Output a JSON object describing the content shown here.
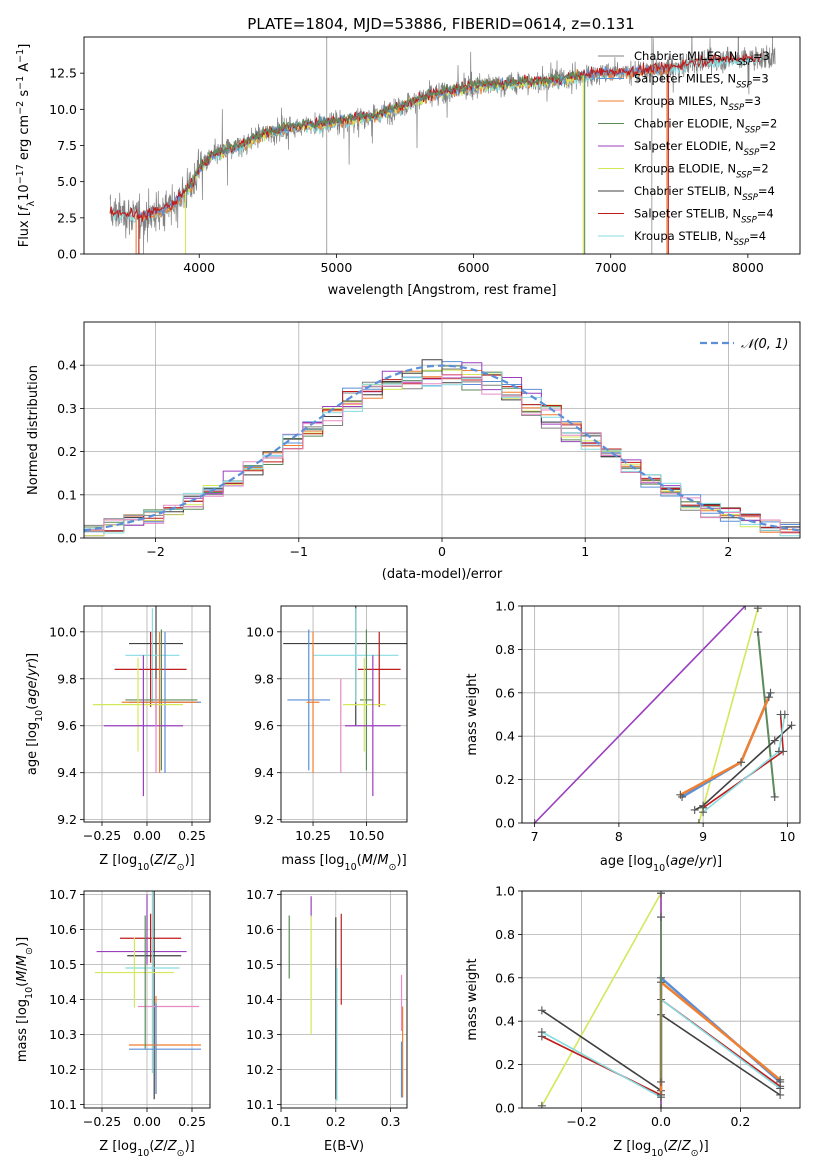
{
  "figure": {
    "title": "PLATE=1804, MJD=53886, FIBERID=0614, z=0.131",
    "colors": {
      "orange": "#f07f2f",
      "blue": "#5b8fd8",
      "purple": "#9a3fbf",
      "yellow": "#d4e85a",
      "green": "#5c8a5c",
      "pink": "#e98ac6",
      "red": "#c01c1c",
      "cyan": "#86dce0",
      "dark": "#404040",
      "gray": "#808080",
      "grid": "#b0b0b0"
    }
  },
  "chart_data": [
    {
      "id": "spectrum",
      "type": "line",
      "title": "PLATE=1804, MJD=53886, FIBERID=0614, z=0.131",
      "xlabel": "wavelength [Angstrom, rest frame]",
      "ylabel": "Flux [f_λ 10^-17 erg cm^-2 s^-1 A^-1]",
      "xlim": [
        3160,
        8380
      ],
      "ylim": [
        0,
        15
      ],
      "xticks": [
        4000,
        5000,
        6000,
        7000,
        8000
      ],
      "yticks": [
        0.0,
        2.5,
        5.0,
        7.5,
        10.0,
        12.5
      ],
      "grid": false,
      "legend_position": "upper-right",
      "legend": [
        {
          "name": "Chabrier MILES, N_SSP=3",
          "color": "gray"
        },
        {
          "name": "Salpeter MILES, N_SSP=3",
          "color": "blue"
        },
        {
          "name": "Kroupa MILES, N_SSP=3",
          "color": "orange"
        },
        {
          "name": "Chabrier ELODIE, N_SSP=2",
          "color": "green"
        },
        {
          "name": "Salpeter ELODIE, N_SSP=2",
          "color": "purple"
        },
        {
          "name": "Kroupa ELODIE, N_SSP=2",
          "color": "yellow"
        },
        {
          "name": "Chabrier STELIB, N_SSP=4",
          "color": "dark"
        },
        {
          "name": "Salpeter STELIB, N_SSP=4",
          "color": "red"
        },
        {
          "name": "Kroupa STELIB, N_SSP=4",
          "color": "cyan"
        }
      ],
      "continuum_points": [
        [
          3350,
          2.9
        ],
        [
          3600,
          2.6
        ],
        [
          3800,
          3.3
        ],
        [
          3950,
          4.8
        ],
        [
          4000,
          6.0
        ],
        [
          4100,
          6.8
        ],
        [
          4300,
          7.5
        ],
        [
          4500,
          8.4
        ],
        [
          4700,
          8.8
        ],
        [
          4900,
          9.0
        ],
        [
          5100,
          9.3
        ],
        [
          5300,
          9.6
        ],
        [
          5500,
          10.3
        ],
        [
          5700,
          11.0
        ],
        [
          6000,
          11.6
        ],
        [
          6300,
          11.8
        ],
        [
          6600,
          12.0
        ],
        [
          6900,
          12.5
        ],
        [
          7200,
          12.6
        ],
        [
          7400,
          12.8
        ],
        [
          7600,
          13.2
        ],
        [
          7800,
          13.4
        ],
        [
          8000,
          13.5
        ],
        [
          8200,
          13.6
        ]
      ],
      "model_coverage": {
        "MILES": [
          3540,
          7410
        ],
        "ELODIE": [
          3900,
          6800
        ],
        "STELIB": [
          3350,
          8100
        ]
      },
      "data_coverage": [
        3350,
        8200
      ]
    },
    {
      "id": "residuals",
      "type": "line",
      "xlabel": "(data-model)/error",
      "ylabel": "Normed distribution",
      "xlim": [
        -2.5,
        2.5
      ],
      "ylim": [
        0,
        0.5
      ],
      "xticks": [
        -2,
        -1,
        0,
        1,
        2
      ],
      "yticks": [
        0.0,
        0.1,
        0.2,
        0.3,
        0.4
      ],
      "grid": true,
      "legend_position": "upper-right",
      "gaussian": {
        "name": "𝒩(0, 1)",
        "mean": 0,
        "sigma": 1,
        "color": "blue"
      },
      "bins": 36
    },
    {
      "id": "age_vs_Z",
      "type": "scatter",
      "xlabel": "Z [log10(Z/Z⊙)]",
      "ylabel": "age  [log10(age/yr)]",
      "xlim": [
        -0.35,
        0.35
      ],
      "ylim": [
        9.19,
        10.11
      ],
      "xticks": [
        -0.25,
        0.0,
        0.25
      ],
      "yticks": [
        9.2,
        9.4,
        9.6,
        9.8,
        10.0
      ],
      "grid": true,
      "points": [
        {
          "x": 0.05,
          "y": 9.95,
          "xerr": 0.15,
          "yerr": 0.35,
          "color": "dark"
        },
        {
          "x": 0.03,
          "y": 9.9,
          "xerr": 0.15,
          "yerr": 0.2,
          "color": "cyan"
        },
        {
          "x": 0.02,
          "y": 9.84,
          "xerr": 0.2,
          "yerr": 0.16,
          "color": "red"
        },
        {
          "x": 0.08,
          "y": 9.71,
          "xerr": 0.2,
          "yerr": 0.3,
          "color": "green"
        },
        {
          "x": 0.1,
          "y": 9.7,
          "xerr": 0.2,
          "yerr": 0.3,
          "color": "blue"
        },
        {
          "x": 0.07,
          "y": 9.7,
          "xerr": 0.21,
          "yerr": 0.3,
          "color": "orange"
        },
        {
          "x": -0.05,
          "y": 9.69,
          "xerr": 0.25,
          "yerr": 0.2,
          "color": "yellow"
        },
        {
          "x": -0.02,
          "y": 9.6,
          "xerr": 0.22,
          "yerr": 0.3,
          "color": "purple"
        },
        {
          "x": 0.05,
          "y": 9.6,
          "xerr": 0.0,
          "yerr": 0.2,
          "color": "pink"
        }
      ]
    },
    {
      "id": "age_vs_mass",
      "type": "scatter",
      "xlabel": "mass [log10(M/M⊙)]",
      "ylabel": "",
      "xlim": [
        10.1,
        10.69
      ],
      "ylim": [
        9.19,
        10.11
      ],
      "xticks": [
        10.25,
        10.5
      ],
      "yticks": [
        9.2,
        9.4,
        9.6,
        9.8,
        10.0
      ],
      "grid": true,
      "points": [
        {
          "x": 10.45,
          "y": 9.95,
          "xerr": 0.34,
          "yerr": 0.35,
          "color": "dark"
        },
        {
          "x": 10.45,
          "y": 9.9,
          "xerr": 0.2,
          "yerr": 0.2,
          "color": "cyan"
        },
        {
          "x": 10.56,
          "y": 9.84,
          "xerr": 0.1,
          "yerr": 0.16,
          "color": "red"
        },
        {
          "x": 10.5,
          "y": 9.71,
          "xerr": 0.03,
          "yerr": 0.3,
          "color": "green"
        },
        {
          "x": 10.23,
          "y": 9.71,
          "xerr": 0.1,
          "yerr": 0.3,
          "color": "blue"
        },
        {
          "x": 10.25,
          "y": 9.7,
          "xerr": 0.03,
          "yerr": 0.3,
          "color": "orange"
        },
        {
          "x": 10.49,
          "y": 9.69,
          "xerr": 0.1,
          "yerr": 0.2,
          "color": "yellow"
        },
        {
          "x": 10.53,
          "y": 9.6,
          "xerr": 0.13,
          "yerr": 0.3,
          "color": "purple"
        },
        {
          "x": 10.38,
          "y": 9.6,
          "xerr": 0.0,
          "yerr": 0.2,
          "color": "pink"
        }
      ]
    },
    {
      "id": "massweight_vs_age",
      "type": "line",
      "xlabel": "age  [log10(age/yr)]",
      "ylabel": "mass weight",
      "xlim": [
        6.85,
        10.15
      ],
      "ylim": [
        0,
        1
      ],
      "xticks": [
        7,
        8,
        9,
        10
      ],
      "yticks": [
        0.0,
        0.2,
        0.4,
        0.6,
        0.8,
        1.0
      ],
      "grid": true,
      "series": [
        {
          "color": "purple",
          "width": 1.6,
          "x": [
            7.0,
            9.5
          ],
          "y": [
            0.0,
            1.0
          ]
        },
        {
          "color": "yellow",
          "width": 1.6,
          "x": [
            8.95,
            9.65
          ],
          "y": [
            0.0,
            0.99
          ]
        },
        {
          "color": "green",
          "width": 2.0,
          "x": [
            9.65,
            9.85
          ],
          "y": [
            0.88,
            0.12
          ]
        },
        {
          "color": "blue",
          "width": 2.5,
          "x": [
            8.75,
            9.45,
            9.8
          ],
          "y": [
            0.12,
            0.28,
            0.6
          ]
        },
        {
          "color": "orange",
          "width": 2.5,
          "x": [
            8.73,
            9.45,
            9.78
          ],
          "y": [
            0.13,
            0.28,
            0.58
          ]
        },
        {
          "color": "dark",
          "width": 1.6,
          "x": [
            8.9,
            9.0,
            9.85,
            10.05
          ],
          "y": [
            0.06,
            0.08,
            0.38,
            0.45
          ]
        },
        {
          "color": "red",
          "width": 1.6,
          "x": [
            9.0,
            9.95,
            9.92
          ],
          "y": [
            0.07,
            0.33,
            0.5
          ]
        },
        {
          "color": "cyan",
          "width": 1.6,
          "x": [
            9.0,
            9.9,
            9.97
          ],
          "y": [
            0.05,
            0.33,
            0.5
          ]
        }
      ]
    },
    {
      "id": "mass_vs_Z",
      "type": "scatter",
      "xlabel": "Z [log10(Z/Z⊙)]",
      "ylabel": "mass [log10(M/M⊙)]",
      "xlim": [
        -0.35,
        0.35
      ],
      "ylim": [
        10.09,
        10.71
      ],
      "xticks": [
        -0.25,
        0.0,
        0.25
      ],
      "yticks": [
        10.1,
        10.2,
        10.3,
        10.4,
        10.5,
        10.6,
        10.7
      ],
      "grid": true,
      "points": [
        {
          "x": 0.02,
          "y": 10.575,
          "xerr": 0.17,
          "yerr": 0.07,
          "color": "red"
        },
        {
          "x": -0.03,
          "y": 10.537,
          "xerr": 0.25,
          "yerr": 0.0,
          "color": "purple"
        },
        {
          "x": 0.0,
          "y": 10.6,
          "xerr": 0.0,
          "yerr": 0.1,
          "color": "purple"
        },
        {
          "x": 0.04,
          "y": 10.525,
          "xerr": 0.15,
          "yerr": 0.41,
          "color": "dark"
        },
        {
          "x": 0.03,
          "y": 10.49,
          "xerr": 0.15,
          "yerr": 0.3,
          "color": "cyan"
        },
        {
          "x": -0.07,
          "y": 10.477,
          "xerr": 0.22,
          "yerr": 0.1,
          "color": "yellow"
        },
        {
          "x": 0.12,
          "y": 10.38,
          "xerr": 0.17,
          "yerr": 0.0,
          "color": "pink"
        },
        {
          "x": 0.1,
          "y": 10.27,
          "xerr": 0.2,
          "yerr": 0.0,
          "color": "orange"
        },
        {
          "x": 0.1,
          "y": 10.258,
          "xerr": 0.2,
          "yerr": 0.0,
          "color": "blue"
        },
        {
          "x": 0.05,
          "y": 10.27,
          "xerr": 0.0,
          "yerr": 0.14,
          "color": "orange"
        },
        {
          "x": 0.05,
          "y": 10.26,
          "xerr": 0.0,
          "yerr": 0.13,
          "color": "blue"
        },
        {
          "x": -0.01,
          "y": 10.45,
          "xerr": 0.0,
          "yerr": 0.19,
          "color": "green"
        }
      ]
    },
    {
      "id": "mass_vs_ebv",
      "type": "scatter",
      "xlabel": "E(B-V)",
      "ylabel": "",
      "xlim": [
        0.1,
        0.33
      ],
      "ylim": [
        10.09,
        10.71
      ],
      "xticks": [
        0.1,
        0.2,
        0.3
      ],
      "yticks": [
        10.1,
        10.2,
        10.3,
        10.4,
        10.5,
        10.6,
        10.7
      ],
      "grid": true,
      "points": [
        {
          "x": 0.115,
          "y": 10.55,
          "yerr": 0.09,
          "color": "green"
        },
        {
          "x": 0.155,
          "y": 10.665,
          "yerr": 0.03,
          "color": "purple"
        },
        {
          "x": 0.155,
          "y": 10.47,
          "yerr": 0.17,
          "color": "yellow"
        },
        {
          "x": 0.2,
          "y": 10.375,
          "yerr": 0.26,
          "color": "dark"
        },
        {
          "x": 0.202,
          "y": 10.3,
          "yerr": 0.19,
          "color": "cyan"
        },
        {
          "x": 0.21,
          "y": 10.515,
          "yerr": 0.13,
          "color": "red"
        },
        {
          "x": 0.32,
          "y": 10.39,
          "yerr": 0.08,
          "color": "pink"
        },
        {
          "x": 0.322,
          "y": 10.25,
          "yerr": 0.13,
          "color": "orange"
        },
        {
          "x": 0.32,
          "y": 10.2,
          "yerr": 0.08,
          "color": "blue"
        }
      ]
    },
    {
      "id": "massweight_vs_Z",
      "type": "line",
      "xlabel": "Z [log10(Z/Z⊙)]",
      "ylabel": "mass weight",
      "xlim": [
        -0.35,
        0.35
      ],
      "ylim": [
        0,
        1
      ],
      "xticks": [
        -0.2,
        0.0,
        0.2
      ],
      "yticks": [
        0.0,
        0.2,
        0.4,
        0.6,
        0.8,
        1.0
      ],
      "grid": true,
      "series": [
        {
          "color": "yellow",
          "width": 1.6,
          "x": [
            -0.3,
            0.0,
            0.0
          ],
          "y": [
            0.01,
            0.99,
            0.0
          ]
        },
        {
          "color": "purple",
          "width": 1.6,
          "x": [
            0.0,
            0.0
          ],
          "y": [
            0.0,
            0.99
          ]
        },
        {
          "color": "dark",
          "width": 1.6,
          "x": [
            -0.3,
            0.0,
            0.0,
            0.3
          ],
          "y": [
            0.45,
            0.08,
            0.43,
            0.06
          ]
        },
        {
          "color": "red",
          "width": 1.6,
          "x": [
            -0.3,
            0.0,
            0.0,
            0.3
          ],
          "y": [
            0.33,
            0.06,
            0.5,
            0.1
          ]
        },
        {
          "color": "cyan",
          "width": 1.6,
          "x": [
            -0.3,
            0.0,
            0.0,
            0.3
          ],
          "y": [
            0.35,
            0.05,
            0.5,
            0.09
          ]
        },
        {
          "color": "blue",
          "width": 2.5,
          "x": [
            0.0,
            0.0,
            0.3
          ],
          "y": [
            0.06,
            0.6,
            0.12
          ]
        },
        {
          "color": "orange",
          "width": 2.5,
          "x": [
            0.0,
            0.0,
            0.3
          ],
          "y": [
            0.06,
            0.58,
            0.13
          ]
        },
        {
          "color": "green",
          "width": 1.6,
          "x": [
            0.0,
            0.0
          ],
          "y": [
            0.12,
            0.88
          ]
        }
      ]
    }
  ]
}
